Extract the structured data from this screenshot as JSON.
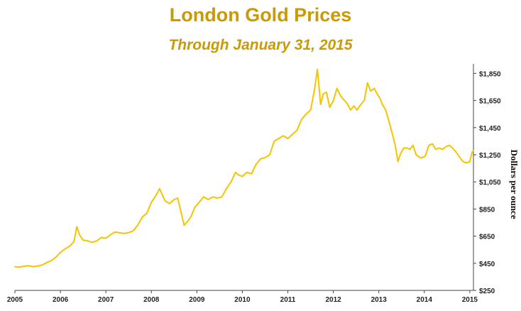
{
  "chart_data": {
    "type": "line",
    "title": "London Gold Prices",
    "subtitle": "Through January 31, 2015",
    "xlabel": "",
    "ylabel": "Dollars per ounce",
    "x_tick_labels": [
      "2005",
      "2006",
      "2007",
      "2008",
      "2009",
      "2010",
      "2011",
      "2012",
      "2013",
      "2014",
      "2015"
    ],
    "y_tick_labels": [
      "$250",
      "$450",
      "$650",
      "$850",
      "$1,050",
      "$1,250",
      "$1,450",
      "$1,650",
      "$1,850"
    ],
    "ylim": [
      250,
      1920
    ],
    "xlim": [
      2005.0,
      2015.08
    ],
    "grid": false,
    "y_axis_position": "right",
    "line_color": "#f5c400",
    "series": [
      {
        "x": [
          2005.0,
          2005.1,
          2005.2,
          2005.3,
          2005.4,
          2005.5,
          2005.6,
          2005.7,
          2005.8,
          2005.9,
          2006.0,
          2006.1,
          2006.2,
          2006.3,
          2006.36,
          2006.42,
          2006.5,
          2006.6,
          2006.7,
          2006.8,
          2006.9,
          2007.0,
          2007.1,
          2007.2,
          2007.3,
          2007.4,
          2007.5,
          2007.6,
          2007.7,
          2007.8,
          2007.9,
          2008.0,
          2008.1,
          2008.18,
          2008.3,
          2008.4,
          2008.5,
          2008.58,
          2008.65,
          2008.72,
          2008.8,
          2008.88,
          2008.95,
          2009.05,
          2009.15,
          2009.25,
          2009.35,
          2009.45,
          2009.55,
          2009.65,
          2009.75,
          2009.85,
          2009.92,
          2010.0,
          2010.1,
          2010.2,
          2010.3,
          2010.4,
          2010.5,
          2010.6,
          2010.7,
          2010.8,
          2010.9,
          2011.0,
          2011.1,
          2011.2,
          2011.3,
          2011.4,
          2011.5,
          2011.58,
          2011.65,
          2011.72,
          2011.78,
          2011.85,
          2011.92,
          2012.0,
          2012.08,
          2012.15,
          2012.22,
          2012.3,
          2012.38,
          2012.45,
          2012.52,
          2012.6,
          2012.68,
          2012.75,
          2012.82,
          2012.9,
          2012.96,
          2013.02,
          2013.08,
          2013.15,
          2013.22,
          2013.3,
          2013.36,
          2013.42,
          2013.48,
          2013.55,
          2013.62,
          2013.68,
          2013.75,
          2013.82,
          2013.9,
          2013.96,
          2014.02,
          2014.1,
          2014.18,
          2014.25,
          2014.32,
          2014.4,
          2014.48,
          2014.55,
          2014.62,
          2014.7,
          2014.78,
          2014.85,
          2014.92,
          2015.0,
          2015.05,
          2015.08
        ],
        "y": [
          425,
          422,
          428,
          432,
          425,
          430,
          438,
          455,
          470,
          495,
          530,
          555,
          575,
          610,
          720,
          660,
          620,
          615,
          605,
          615,
          640,
          635,
          660,
          680,
          675,
          670,
          675,
          690,
          730,
          790,
          820,
          900,
          950,
          1000,
          910,
          890,
          920,
          930,
          830,
          730,
          760,
          800,
          860,
          900,
          940,
          920,
          940,
          930,
          940,
          1000,
          1050,
          1120,
          1100,
          1090,
          1120,
          1110,
          1180,
          1220,
          1230,
          1250,
          1350,
          1370,
          1390,
          1370,
          1400,
          1430,
          1510,
          1550,
          1580,
          1720,
          1880,
          1620,
          1700,
          1710,
          1600,
          1650,
          1740,
          1690,
          1660,
          1630,
          1580,
          1610,
          1580,
          1620,
          1650,
          1780,
          1720,
          1740,
          1700,
          1670,
          1620,
          1580,
          1500,
          1400,
          1320,
          1200,
          1260,
          1300,
          1300,
          1290,
          1320,
          1250,
          1230,
          1230,
          1240,
          1320,
          1330,
          1290,
          1300,
          1290,
          1310,
          1320,
          1300,
          1270,
          1230,
          1200,
          1190,
          1200,
          1270,
          1280
        ]
      }
    ]
  }
}
